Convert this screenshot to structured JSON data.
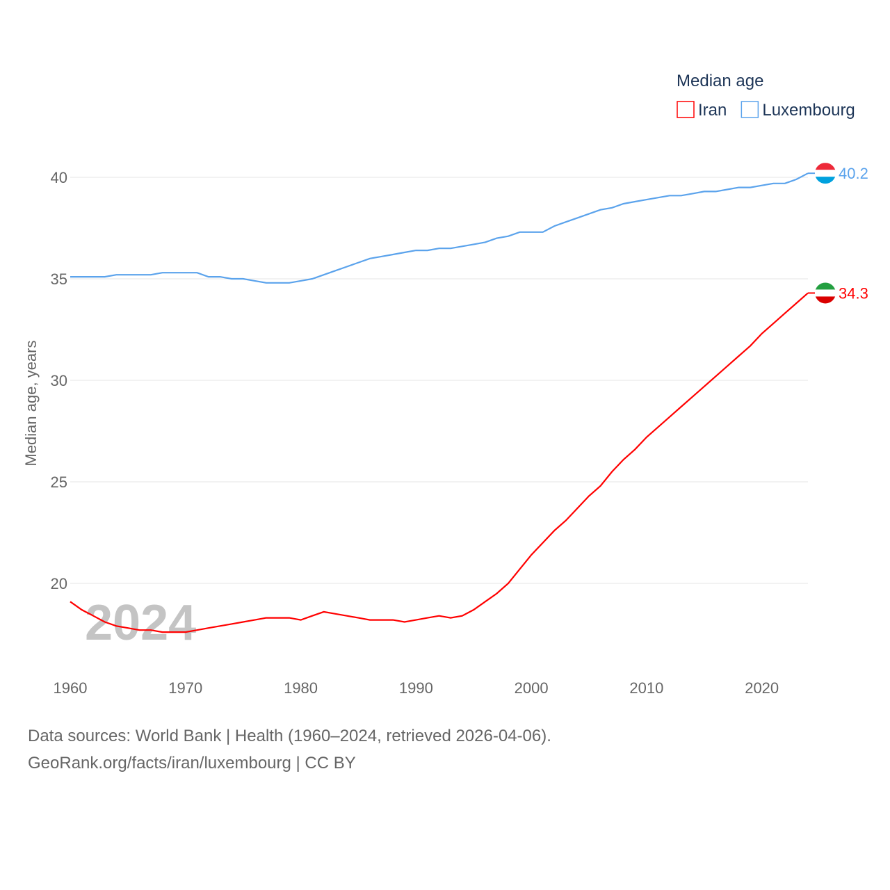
{
  "chart_data": {
    "type": "line",
    "title": "Median age",
    "ylabel": "Median age, years",
    "xlabel": "",
    "ylim": [
      15.5,
      41.5
    ],
    "xlim": [
      1960,
      2024
    ],
    "yticks": [
      20,
      25,
      30,
      35,
      40
    ],
    "xticks": [
      1960,
      1970,
      1980,
      1990,
      2000,
      2010,
      2020
    ],
    "grid": true,
    "legend_placement": "top-right",
    "year_label": "2024",
    "x": [
      1960,
      1961,
      1962,
      1963,
      1964,
      1965,
      1966,
      1967,
      1968,
      1969,
      1970,
      1971,
      1972,
      1973,
      1974,
      1975,
      1976,
      1977,
      1978,
      1979,
      1980,
      1981,
      1982,
      1983,
      1984,
      1985,
      1986,
      1987,
      1988,
      1989,
      1990,
      1991,
      1992,
      1993,
      1994,
      1995,
      1996,
      1997,
      1998,
      1999,
      2000,
      2001,
      2002,
      2003,
      2004,
      2005,
      2006,
      2007,
      2008,
      2009,
      2010,
      2011,
      2012,
      2013,
      2014,
      2015,
      2016,
      2017,
      2018,
      2019,
      2020,
      2021,
      2022,
      2023,
      2024
    ],
    "series": [
      {
        "name": "Iran",
        "color": "#ff0000",
        "end_label": "34.3",
        "values": [
          19.1,
          18.7,
          18.4,
          18.1,
          17.9,
          17.8,
          17.7,
          17.7,
          17.6,
          17.6,
          17.6,
          17.7,
          17.8,
          17.9,
          18.0,
          18.1,
          18.2,
          18.3,
          18.3,
          18.3,
          18.2,
          18.4,
          18.6,
          18.5,
          18.4,
          18.3,
          18.2,
          18.2,
          18.2,
          18.1,
          18.2,
          18.3,
          18.4,
          18.3,
          18.4,
          18.7,
          19.1,
          19.5,
          20.0,
          20.7,
          21.4,
          22.0,
          22.6,
          23.1,
          23.7,
          24.3,
          24.8,
          25.5,
          26.1,
          26.6,
          27.2,
          27.7,
          28.2,
          28.7,
          29.2,
          29.7,
          30.2,
          30.7,
          31.2,
          31.7,
          32.3,
          32.8,
          33.3,
          33.8,
          34.3
        ]
      },
      {
        "name": "Luxembourg",
        "color": "#5ba3ec",
        "end_label": "40.2",
        "values": [
          35.1,
          35.1,
          35.1,
          35.1,
          35.2,
          35.2,
          35.2,
          35.2,
          35.3,
          35.3,
          35.3,
          35.3,
          35.1,
          35.1,
          35.0,
          35.0,
          34.9,
          34.8,
          34.8,
          34.8,
          34.9,
          35.0,
          35.2,
          35.4,
          35.6,
          35.8,
          36.0,
          36.1,
          36.2,
          36.3,
          36.4,
          36.4,
          36.5,
          36.5,
          36.6,
          36.7,
          36.8,
          37.0,
          37.1,
          37.3,
          37.3,
          37.3,
          37.6,
          37.8,
          38.0,
          38.2,
          38.4,
          38.5,
          38.7,
          38.8,
          38.9,
          39.0,
          39.1,
          39.1,
          39.2,
          39.3,
          39.3,
          39.4,
          39.5,
          39.5,
          39.6,
          39.7,
          39.7,
          39.9,
          40.2
        ]
      }
    ]
  },
  "footer": {
    "sources": "Data sources: World Bank | Health (1960–2024, retrieved 2026-04-06).",
    "credit": "GeoRank.org/facts/iran/luxembourg | CC BY"
  }
}
